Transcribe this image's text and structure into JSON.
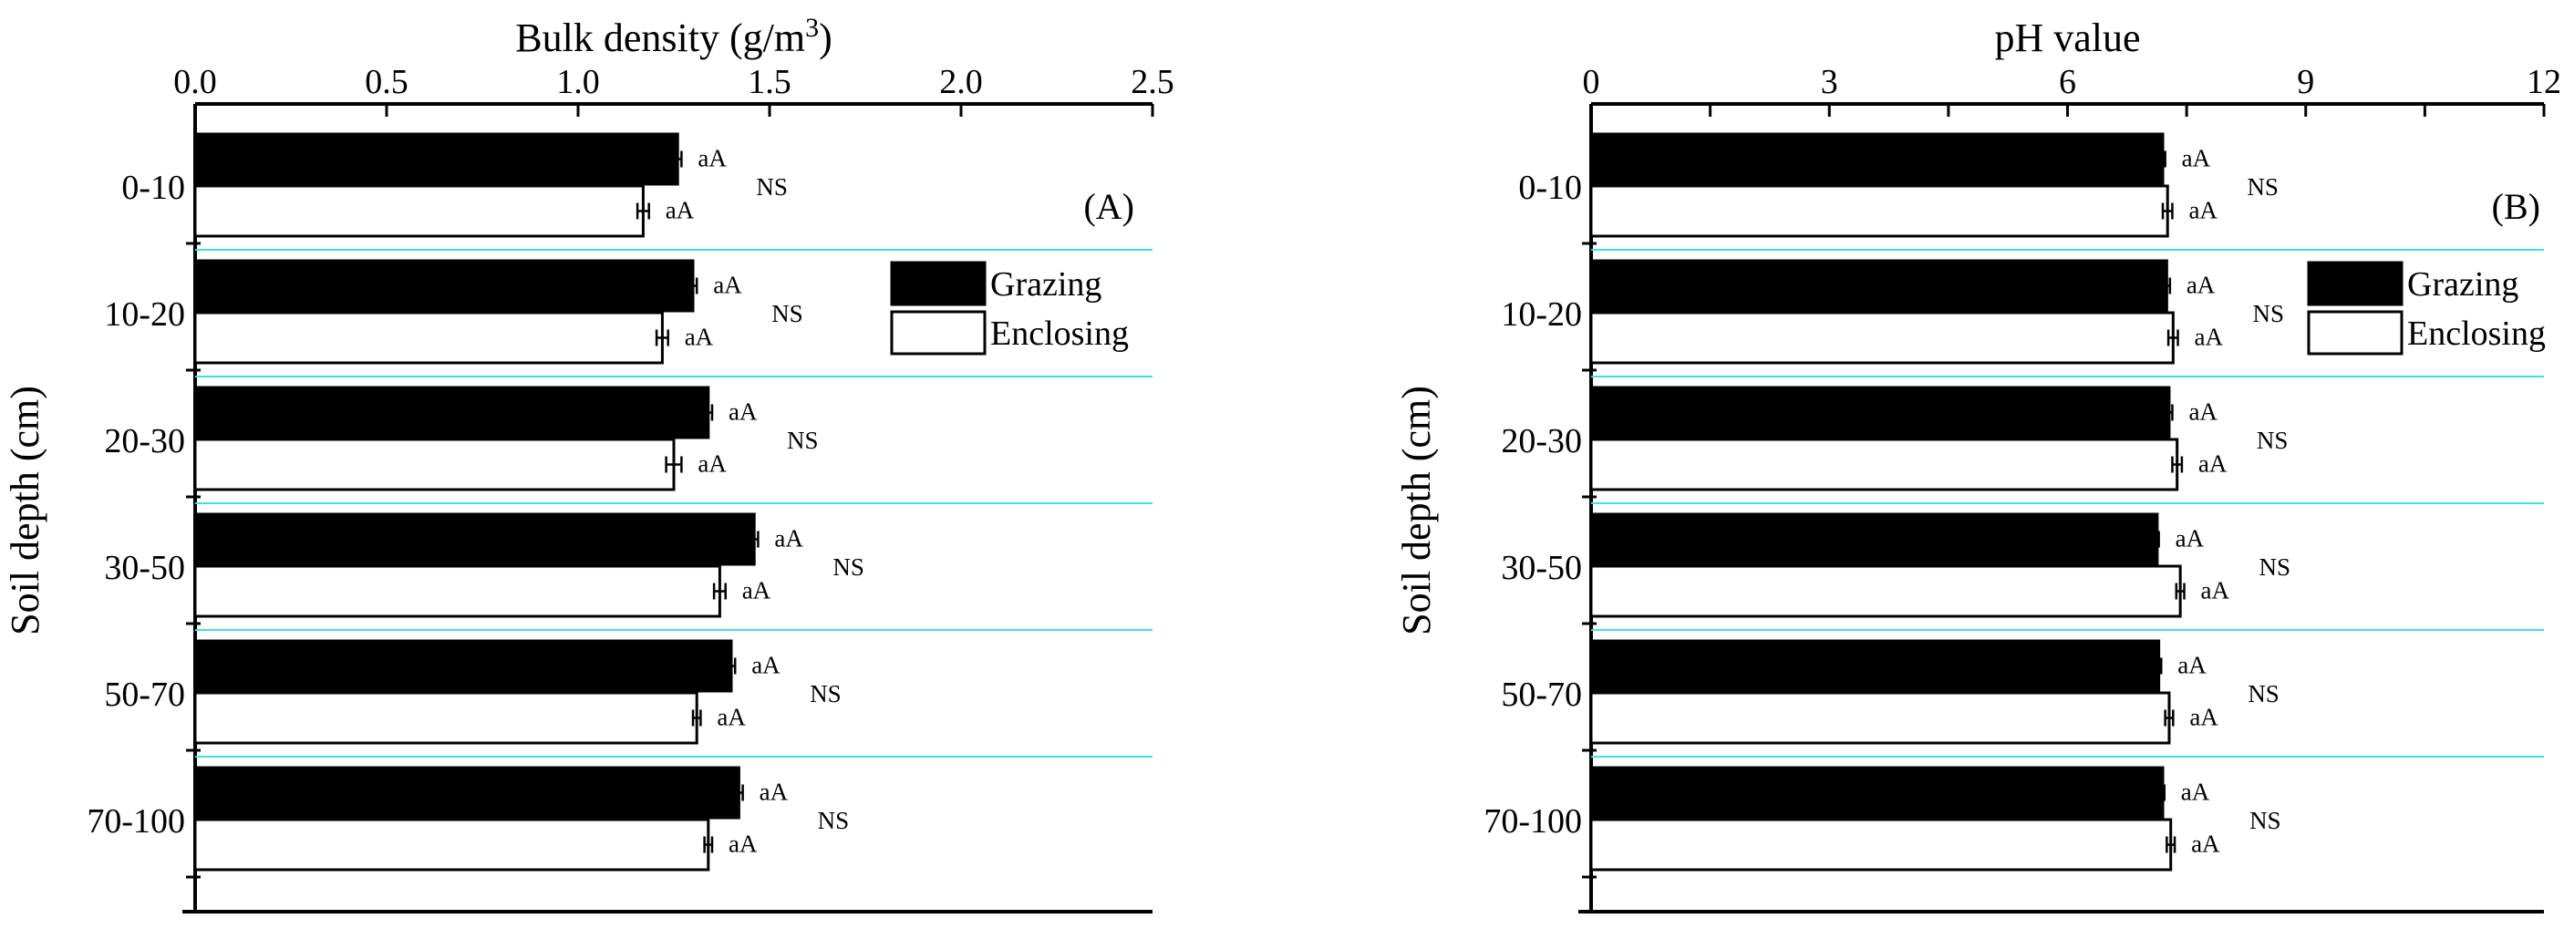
{
  "colors": {
    "grazing": "#000000",
    "enclosing": "#ffffff",
    "separator": "#40e0e0",
    "axis": "#000000"
  },
  "chart_data": [
    {
      "panel": "(A)",
      "type": "bar",
      "orientation": "horizontal",
      "title": "",
      "xlabel": "Bulk density (g/m",
      "xlabel_superscript": "3",
      "xlabel_suffix": ")",
      "ylabel": "Soil depth (cm)",
      "xlim": [
        0,
        2.5
      ],
      "xticks": [
        "0.0",
        "0.5",
        "1.0",
        "1.5",
        "2.0",
        "2.5"
      ],
      "xtick_values": [
        0,
        0.5,
        1.0,
        1.5,
        2.0,
        2.5
      ],
      "minor_ticks": false,
      "categories": [
        "0-10",
        "10-20",
        "20-30",
        "30-50",
        "50-70",
        "70-100"
      ],
      "series": [
        {
          "name": "Grazing",
          "values": [
            1.26,
            1.3,
            1.34,
            1.46,
            1.4,
            1.42
          ],
          "errors": [
            0.01,
            0.01,
            0.01,
            0.01,
            0.01,
            0.01
          ],
          "letters": [
            "aA",
            "aA",
            "aA",
            "aA",
            "aA",
            "aA"
          ]
        },
        {
          "name": "Enclosing",
          "values": [
            1.17,
            1.22,
            1.25,
            1.37,
            1.31,
            1.34
          ],
          "errors": [
            0.015,
            0.015,
            0.02,
            0.015,
            0.01,
            0.01
          ],
          "letters": [
            "aA",
            "aA",
            "aA",
            "aA",
            "aA",
            "aA"
          ]
        }
      ],
      "significance": [
        "NS",
        "NS",
        "NS",
        "NS",
        "NS",
        "NS"
      ],
      "legend": [
        "Grazing",
        "Enclosing"
      ],
      "legend_position": "top-right"
    },
    {
      "panel": "(B)",
      "type": "bar",
      "orientation": "horizontal",
      "title": "",
      "xlabel": "pH value",
      "xlabel_superscript": "",
      "xlabel_suffix": "",
      "ylabel": "Soil depth (cm)",
      "xlim": [
        0,
        12
      ],
      "xticks": [
        "0",
        "3",
        "6",
        "9",
        "12"
      ],
      "xtick_values": [
        0,
        3,
        6,
        9,
        12
      ],
      "minor_ticks": true,
      "categories": [
        "0-10",
        "10-20",
        "20-30",
        "30-50",
        "50-70",
        "70-100"
      ],
      "series": [
        {
          "name": "Grazing",
          "values": [
            7.2,
            7.25,
            7.28,
            7.13,
            7.15,
            7.2
          ],
          "errors": [
            0.03,
            0.04,
            0.04,
            0.02,
            0.03,
            0.02
          ],
          "letters": [
            "aA",
            "aA",
            "aA",
            "aA",
            "aA",
            "aA"
          ]
        },
        {
          "name": "Enclosing",
          "values": [
            7.26,
            7.33,
            7.38,
            7.42,
            7.28,
            7.3
          ],
          "errors": [
            0.06,
            0.06,
            0.06,
            0.05,
            0.05,
            0.05
          ],
          "letters": [
            "aA",
            "aA",
            "aA",
            "aA",
            "aA",
            "aA"
          ]
        }
      ],
      "significance": [
        "NS",
        "NS",
        "NS",
        "NS",
        "NS",
        "NS"
      ],
      "legend": [
        "Grazing",
        "Enclosing"
      ],
      "legend_position": "top-right"
    }
  ]
}
